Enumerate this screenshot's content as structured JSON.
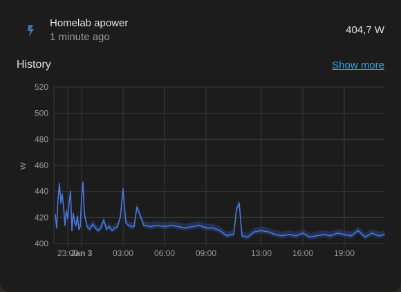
{
  "entity": {
    "name": "Homelab apower",
    "last_changed": "1 minute ago",
    "state": "404,7 W",
    "icon": "flash-icon"
  },
  "history": {
    "title": "History",
    "show_more": "Show more"
  },
  "colors": {
    "background": "#1c1c1c",
    "line": "#4a78e0",
    "band": "#2c4a8c",
    "link": "#2ea4e6",
    "icon": "#44739e"
  },
  "chart_data": {
    "type": "line",
    "title": "",
    "xlabel": "",
    "ylabel": "W",
    "ylim": [
      400,
      520
    ],
    "y_ticks": [
      400,
      420,
      440,
      460,
      480,
      500,
      520
    ],
    "x_ticks": [
      "23:00",
      "Jan 3",
      "03:00",
      "06:00",
      "09:00",
      "13:00",
      "16:00",
      "19:00"
    ],
    "x_tick_hours": [
      -1,
      0,
      3,
      6,
      9,
      13,
      16,
      19
    ],
    "x_range_hours": [
      -2.0,
      21.9
    ],
    "grid": true,
    "series": [
      {
        "x": [
          -1.9,
          -1.8,
          -1.7,
          -1.6,
          -1.5,
          -1.4,
          -1.3,
          -1.2,
          -1.1,
          -1.0,
          -0.9,
          -0.8,
          -0.7,
          -0.6,
          -0.5,
          -0.4,
          -0.3,
          -0.2,
          -0.1,
          0.0,
          0.1,
          0.2,
          0.4,
          0.6,
          0.8,
          1.0,
          1.2,
          1.4,
          1.6,
          1.8,
          2.0,
          2.2,
          2.4,
          2.6,
          2.8,
          3.0,
          3.2,
          3.4,
          3.6,
          3.8,
          4.0,
          4.5,
          5.0,
          5.5,
          6.0,
          6.5,
          7.0,
          7.5,
          8.0,
          8.5,
          9.0,
          9.5,
          10.0,
          10.5,
          10.8,
          11.0,
          11.2,
          11.4,
          11.6,
          12.0,
          12.5,
          13.0,
          13.5,
          14.0,
          14.5,
          15.0,
          15.5,
          16.0,
          16.5,
          17.0,
          17.5,
          18.0,
          18.5,
          19.0,
          19.5,
          20.0,
          20.5,
          21.0,
          21.5,
          21.9
        ],
        "y": [
          422,
          412,
          435,
          446,
          431,
          438,
          428,
          414,
          425,
          419,
          432,
          440,
          410,
          423,
          416,
          414,
          421,
          411,
          413,
          435,
          447,
          423,
          413,
          411,
          415,
          412,
          410,
          412,
          418,
          411,
          413,
          410,
          412,
          413,
          420,
          442,
          416,
          414,
          413,
          413,
          428,
          414,
          413,
          414,
          413,
          414,
          413,
          412,
          413,
          414,
          412,
          412,
          410,
          406,
          407,
          407,
          426,
          431,
          406,
          405,
          409,
          410,
          409,
          407,
          406,
          407,
          406,
          408,
          405,
          406,
          407,
          406,
          408,
          407,
          406,
          410,
          405,
          408,
          406,
          407
        ]
      }
    ]
  }
}
